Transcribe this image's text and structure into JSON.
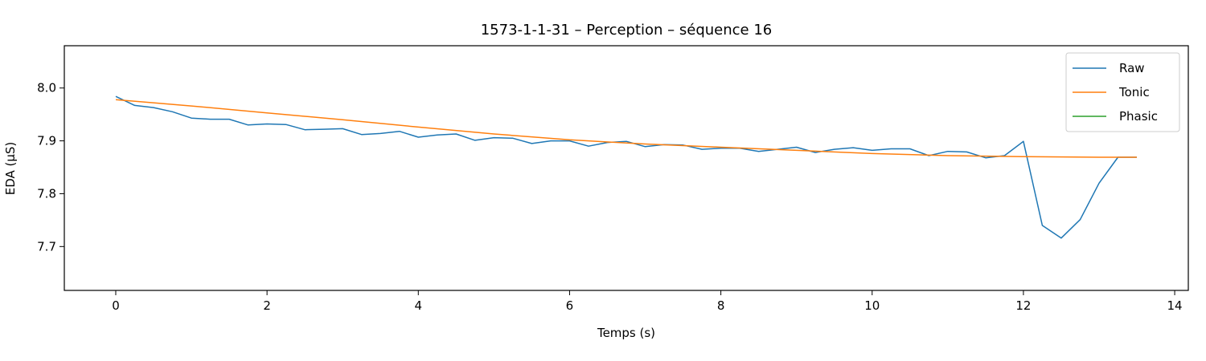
{
  "chart_data": {
    "type": "line",
    "title": "1573-1-1-31 – Perception – séquence 16",
    "xlabel": "Temps (s)",
    "ylabel": "EDA (µS)",
    "xlim": [
      -0.68,
      14.18
    ],
    "ylim": [
      7.617,
      8.08
    ],
    "x_ticks": [
      0,
      2,
      4,
      6,
      8,
      10,
      12,
      14
    ],
    "y_ticks": [
      7.7,
      7.8,
      7.9,
      8.0
    ],
    "x_tick_labels": [
      "0",
      "2",
      "4",
      "6",
      "8",
      "10",
      "12",
      "14"
    ],
    "y_tick_labels": [
      "7.7",
      "7.8",
      "7.9",
      "8.0"
    ],
    "grid": false,
    "legend_position": "top-right",
    "series": [
      {
        "name": "Raw",
        "color": "#1f77b4",
        "x": [
          0,
          0.25,
          0.5,
          0.75,
          1.0,
          1.25,
          1.5,
          1.75,
          2.0,
          2.25,
          2.5,
          2.75,
          3.0,
          3.25,
          3.5,
          3.75,
          4.0,
          4.25,
          4.5,
          4.75,
          5.0,
          5.25,
          5.5,
          5.75,
          6.0,
          6.25,
          6.5,
          6.75,
          7.0,
          7.25,
          7.5,
          7.75,
          8.0,
          8.25,
          8.5,
          8.75,
          9.0,
          9.25,
          9.5,
          9.75,
          10.0,
          10.25,
          10.5,
          10.75,
          11.0,
          11.25,
          11.5,
          11.75,
          12.0,
          12.25,
          12.5,
          12.75,
          13.0,
          13.25,
          13.5
        ],
        "y": [
          7.984,
          7.967,
          7.963,
          7.955,
          7.943,
          7.941,
          7.941,
          7.93,
          7.932,
          7.931,
          7.921,
          7.922,
          7.923,
          7.912,
          7.914,
          7.918,
          7.907,
          7.911,
          7.913,
          7.901,
          7.906,
          7.905,
          7.895,
          7.9,
          7.9,
          7.89,
          7.897,
          7.899,
          7.889,
          7.893,
          7.892,
          7.884,
          7.886,
          7.886,
          7.88,
          7.884,
          7.888,
          7.878,
          7.884,
          7.887,
          7.882,
          7.885,
          7.885,
          7.872,
          7.88,
          7.879,
          7.868,
          7.872,
          7.899,
          7.74,
          7.716,
          7.751,
          7.82,
          7.869,
          7.869
        ]
      },
      {
        "name": "Tonic",
        "color": "#ff7f0e",
        "x": [
          0,
          1,
          2,
          3,
          4,
          5,
          6,
          7,
          8,
          9,
          10,
          11,
          12,
          13,
          13.5
        ],
        "y": [
          7.978,
          7.966,
          7.953,
          7.94,
          7.926,
          7.913,
          7.902,
          7.894,
          7.888,
          7.882,
          7.876,
          7.872,
          7.87,
          7.869,
          7.869
        ]
      },
      {
        "name": "Phasic",
        "color": "#2ca02c",
        "x": [],
        "y": []
      }
    ]
  }
}
